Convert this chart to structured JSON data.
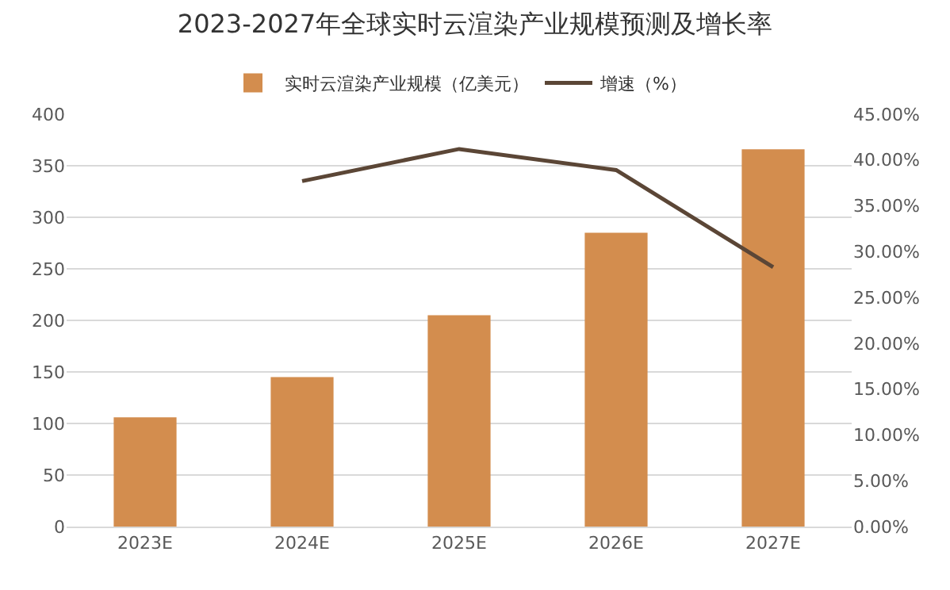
{
  "chart_data": {
    "type": "bar",
    "title": "2023-2027年全球实时云渲染产业规模预测及增长率",
    "categories": [
      "2023E",
      "2024E",
      "2025E",
      "2026E",
      "2027E"
    ],
    "series": [
      {
        "name": "实时云渲染产业规模（亿美元）",
        "color": "#d38d4e",
        "values": [
          106,
          145,
          205,
          285,
          366
        ]
      },
      {
        "name": "增速（%）",
        "type": "line",
        "axis": "y2",
        "color": "#5b4636",
        "values": [
          null,
          37.7,
          41.2,
          38.9,
          28.3
        ]
      }
    ],
    "ylim": [
      0,
      400
    ],
    "yticks": [
      0,
      50,
      100,
      150,
      200,
      250,
      300,
      350,
      400
    ],
    "y2lim": [
      0,
      45
    ],
    "y2ticks": [
      {
        "value": 0,
        "label": "0.00%"
      },
      {
        "value": 5,
        "label": "5.00%"
      },
      {
        "value": 10,
        "label": "10.00%"
      },
      {
        "value": 15,
        "label": "15.00%"
      },
      {
        "value": 20,
        "label": "20.00%"
      },
      {
        "value": 25,
        "label": "25.00%"
      },
      {
        "value": 30,
        "label": "30.00%"
      },
      {
        "value": 35,
        "label": "35.00%"
      },
      {
        "value": 40,
        "label": "40.00%"
      },
      {
        "value": 45,
        "label": "45.00%"
      }
    ],
    "grid": "y",
    "legend": "top",
    "marker": "none",
    "line_style": "solid"
  }
}
